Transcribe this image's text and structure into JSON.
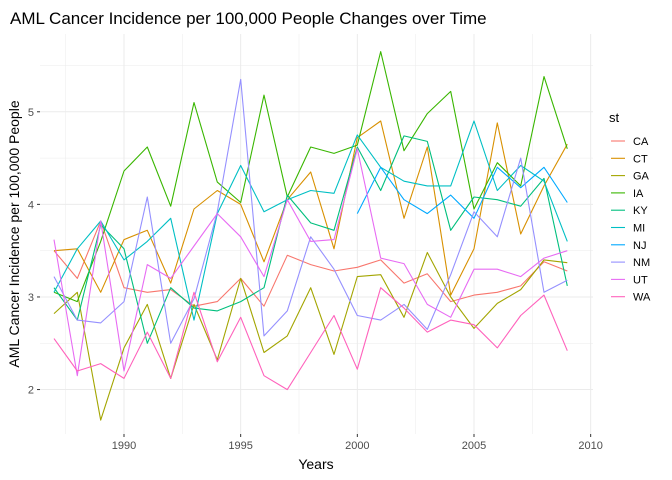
{
  "chart_data": {
    "type": "line",
    "title": "AML Cancer Incidence per 100,000 People Changes over Time",
    "xlabel": "Years",
    "ylabel": "AML Cancer Incidence per 100,000 People",
    "xlim": [
      1986.4,
      2010.1
    ],
    "ylim": [
      1.52,
      5.84
    ],
    "xticks": [
      1990,
      1995,
      2000,
      2005,
      2010
    ],
    "yticks": [
      2,
      3,
      4,
      5
    ],
    "grid": true,
    "legend": {
      "title": "st",
      "position": "right"
    },
    "x": [
      1987,
      1988,
      1989,
      1990,
      1991,
      1992,
      1993,
      1994,
      1995,
      1996,
      1997,
      1998,
      1999,
      2000,
      2001,
      2002,
      2003,
      2004,
      2005,
      2006,
      2007,
      2008,
      2009
    ],
    "series": [
      {
        "name": "CA",
        "color": "#F8766D",
        "values": [
          3.5,
          3.2,
          3.82,
          3.1,
          3.05,
          3.08,
          2.9,
          2.95,
          3.2,
          2.9,
          3.45,
          3.35,
          3.28,
          3.32,
          3.4,
          3.15,
          3.25,
          2.95,
          3.02,
          3.05,
          3.12,
          3.38,
          3.28
        ]
      },
      {
        "name": "CT",
        "color": "#D89000",
        "values": [
          3.5,
          3.52,
          3.05,
          3.62,
          3.72,
          3.15,
          3.95,
          4.15,
          4.0,
          3.38,
          4.05,
          4.35,
          3.52,
          4.72,
          4.9,
          3.85,
          4.62,
          3.02,
          3.52,
          4.88,
          3.68,
          4.2,
          4.65
        ]
      },
      {
        "name": "GA",
        "color": "#A3A500",
        "values": [
          2.82,
          3.05,
          1.67,
          2.45,
          2.92,
          2.12,
          2.92,
          2.32,
          3.2,
          2.4,
          2.58,
          3.1,
          2.38,
          3.22,
          3.24,
          2.78,
          3.48,
          3.0,
          2.66,
          2.93,
          3.08,
          3.4,
          3.37
        ]
      },
      {
        "name": "IA",
        "color": "#39B600",
        "values": [
          3.05,
          2.95,
          3.6,
          4.36,
          4.62,
          3.98,
          5.1,
          4.24,
          4.02,
          5.18,
          4.08,
          4.62,
          4.55,
          4.64,
          5.65,
          4.58,
          4.98,
          5.22,
          3.95,
          4.45,
          4.2,
          5.38,
          4.6
        ]
      },
      {
        "name": "KY",
        "color": "#00BF7D",
        "values": [
          3.1,
          2.75,
          3.78,
          3.52,
          2.5,
          3.1,
          2.88,
          2.85,
          2.95,
          3.1,
          4.1,
          3.8,
          3.72,
          4.62,
          4.15,
          4.74,
          4.68,
          3.72,
          4.08,
          4.05,
          3.98,
          4.28,
          3.12
        ]
      },
      {
        "name": "MI",
        "color": "#00BFC4",
        "values": [
          3.05,
          3.52,
          3.82,
          3.4,
          3.6,
          3.85,
          2.75,
          3.9,
          4.42,
          3.92,
          4.05,
          4.15,
          4.12,
          4.75,
          4.4,
          4.25,
          4.2,
          4.2,
          4.9,
          4.15,
          4.42,
          4.25,
          3.6
        ]
      },
      {
        "name": "NJ",
        "color": "#00A9FF",
        "values": [
          null,
          null,
          null,
          null,
          null,
          null,
          null,
          null,
          null,
          null,
          null,
          null,
          null,
          3.9,
          4.4,
          4.05,
          3.9,
          4.1,
          3.85,
          4.4,
          4.18,
          4.4,
          4.02
        ]
      },
      {
        "name": "NM",
        "color": "#9590FF",
        "values": [
          3.22,
          2.75,
          2.72,
          2.95,
          4.08,
          2.5,
          2.98,
          3.92,
          5.35,
          2.58,
          2.85,
          3.65,
          3.3,
          2.8,
          2.75,
          2.92,
          2.65,
          3.24,
          3.92,
          3.65,
          4.5,
          3.05,
          3.18
        ]
      },
      {
        "name": "UT",
        "color": "#E76BF3",
        "values": [
          3.62,
          2.15,
          3.82,
          2.2,
          3.35,
          3.2,
          3.55,
          3.9,
          3.65,
          3.22,
          4.05,
          3.6,
          3.62,
          4.6,
          3.42,
          3.36,
          2.92,
          2.78,
          3.3,
          3.3,
          3.22,
          3.42,
          3.5
        ]
      },
      {
        "name": "WA",
        "color": "#FF62BC",
        "values": [
          2.55,
          2.2,
          2.28,
          2.12,
          2.62,
          2.12,
          3.05,
          2.3,
          2.78,
          2.15,
          2.0,
          2.4,
          2.8,
          2.22,
          3.1,
          2.88,
          2.62,
          2.75,
          2.7,
          2.45,
          2.8,
          3.02,
          2.42
        ]
      }
    ]
  }
}
